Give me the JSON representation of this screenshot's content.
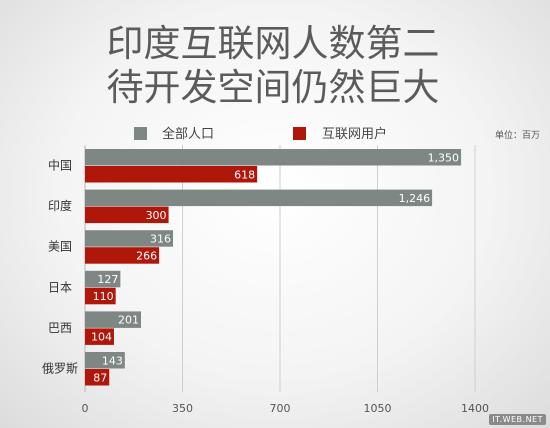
{
  "chart_data": {
    "type": "bar",
    "orientation": "horizontal",
    "title_lines": [
      "印度互联网人数第二",
      "待开发空间仍然巨大"
    ],
    "unit_note": "单位：百万",
    "categories": [
      "中国",
      "印度",
      "美国",
      "日本",
      "巴西",
      "俄罗斯"
    ],
    "series": [
      {
        "name": "全部人口",
        "color": "#7f8784",
        "values": [
          1350,
          1246,
          316,
          127,
          201,
          143
        ],
        "labels": [
          "1,350",
          "1,246",
          "316",
          "127",
          "201",
          "143"
        ]
      },
      {
        "name": "互联网用户",
        "color": "#b0170b",
        "values": [
          618,
          300,
          266,
          110,
          104,
          87
        ],
        "labels": [
          "618",
          "300",
          "266",
          "110",
          "104",
          "87"
        ]
      }
    ],
    "xticks": [
      "0",
      "350",
      "700",
      "1050",
      "1400"
    ],
    "xlim": [
      0,
      1400
    ],
    "grid": true,
    "legend_position": "top"
  },
  "watermark": "IT.WEB.NET"
}
